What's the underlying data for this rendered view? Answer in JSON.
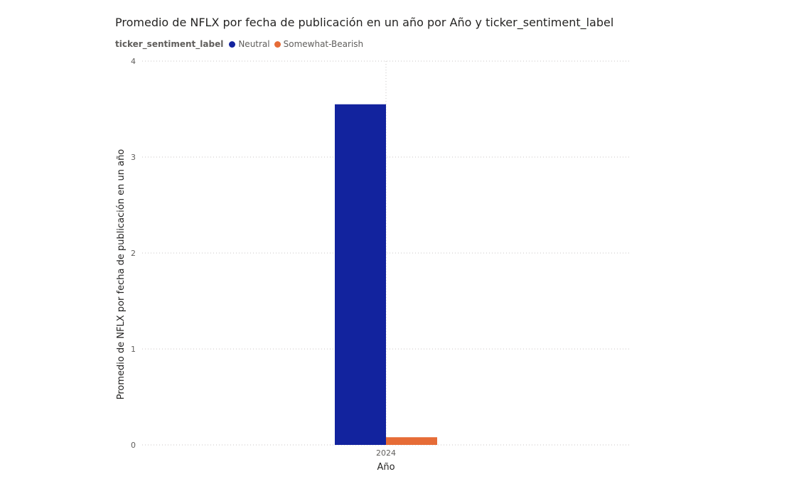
{
  "chart_data": {
    "type": "bar",
    "title": "Promedio de NFLX por fecha de publicación en un año por Año y ticker_sentiment_label",
    "legend_title": "ticker_sentiment_label",
    "legend_position": "top-left",
    "xlabel": "Año",
    "ylabel": "Promedio de NFLX por fecha de publicación en un año",
    "categories": [
      "2024"
    ],
    "series": [
      {
        "name": "Neutral",
        "color": "#12239e",
        "values": [
          3.55
        ]
      },
      {
        "name": "Somewhat-Bearish",
        "color": "#e66c37",
        "values": [
          0.08
        ]
      }
    ],
    "ylim": [
      0,
      4
    ],
    "yticks": [
      0,
      1,
      2,
      3,
      4
    ],
    "grid": true
  }
}
